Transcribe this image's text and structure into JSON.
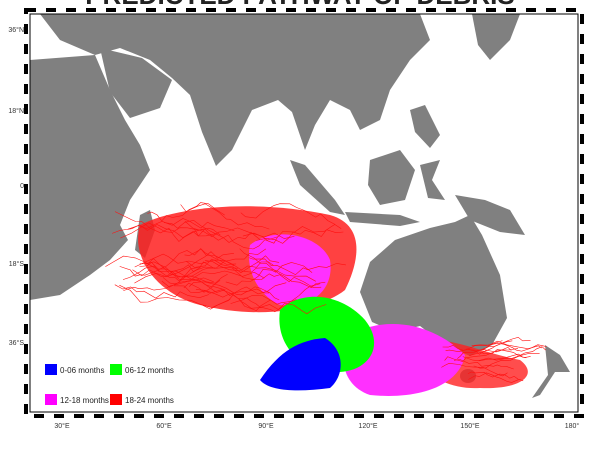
{
  "map": {
    "title": "PREDICTED PATHWAY OF DEBRIS",
    "lat_labels": [
      "36°N",
      "18°N",
      "0",
      "18°S",
      "36°S"
    ],
    "lon_labels": [
      "30°E",
      "60°E",
      "90°E",
      "120°E",
      "150°E",
      "180°"
    ],
    "legend": [
      {
        "label": "0-06 months",
        "color": "#0000ff"
      },
      {
        "label": "06-12 months",
        "color": "#00ff00"
      },
      {
        "label": "12-18 months",
        "color": "#ff00ff"
      },
      {
        "label": "18-24 months",
        "color": "#ff0000"
      }
    ]
  }
}
